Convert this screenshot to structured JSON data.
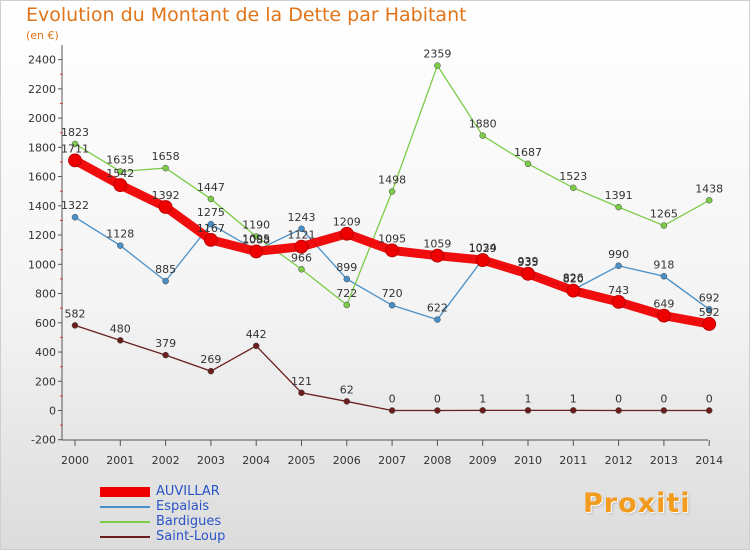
{
  "title": "Evolution du Montant de la Dette par Habitant",
  "subtitle": "(en €)",
  "logo_text": "Proxiti",
  "chart_data": {
    "type": "line",
    "categories": [
      "2000",
      "2001",
      "2002",
      "2003",
      "2004",
      "2005",
      "2006",
      "2007",
      "2008",
      "2009",
      "2010",
      "2011",
      "2012",
      "2013",
      "2014"
    ],
    "y_ticks": [
      -200,
      0,
      200,
      400,
      600,
      800,
      1000,
      1200,
      1400,
      1600,
      1800,
      2000,
      2200,
      2400
    ],
    "ylim": [
      -200,
      2500
    ],
    "grid": false,
    "legend_position": "bottom-left",
    "series": [
      {
        "name": "AUVILLAR",
        "color": "#ee0000",
        "emphasis": true,
        "values": [
          1711,
          1542,
          1392,
          1167,
          1088,
          1121,
          1209,
          1095,
          1059,
          1029,
          935,
          820,
          743,
          649,
          592
        ],
        "labels": [
          "1711",
          "1542",
          "1392",
          "1167",
          "1088",
          "1121",
          "1209",
          "1095",
          "1059",
          "1029",
          "935",
          "820",
          "743",
          "649",
          "592"
        ]
      },
      {
        "name": "Espalais",
        "color": "#4a90c8",
        "emphasis": false,
        "values": [
          1322,
          1128,
          885,
          1275,
          1095,
          1243,
          899,
          720,
          622,
          1034,
          939,
          826,
          990,
          918,
          692
        ],
        "labels": [
          "1322",
          "1128",
          "885",
          "1275",
          "1095",
          "1243",
          "899",
          "720",
          "622",
          "1034",
          "939",
          "826",
          "990",
          "918",
          "692"
        ]
      },
      {
        "name": "Bardigues",
        "color": "#7ccc4a",
        "emphasis": false,
        "values": [
          1823,
          1635,
          1658,
          1447,
          1190,
          966,
          722,
          1498,
          2359,
          1880,
          1687,
          1523,
          1391,
          1265,
          1438
        ],
        "labels": [
          "1823",
          "1635",
          "1658",
          "1447",
          "1190",
          "966",
          "722",
          "1498",
          "2359",
          "1880",
          "1687",
          "1523",
          "1391",
          "1265",
          "1438"
        ]
      },
      {
        "name": "Saint-Loup",
        "color": "#6b1e1e",
        "emphasis": false,
        "values": [
          582,
          480,
          379,
          269,
          442,
          121,
          62,
          0,
          0,
          1,
          1,
          1,
          0,
          0,
          0
        ],
        "labels": [
          "582",
          "480",
          "379",
          "269",
          "442",
          "121",
          "62",
          "0",
          "0",
          "1",
          "1",
          "1",
          "0",
          "0",
          "0"
        ]
      }
    ]
  }
}
